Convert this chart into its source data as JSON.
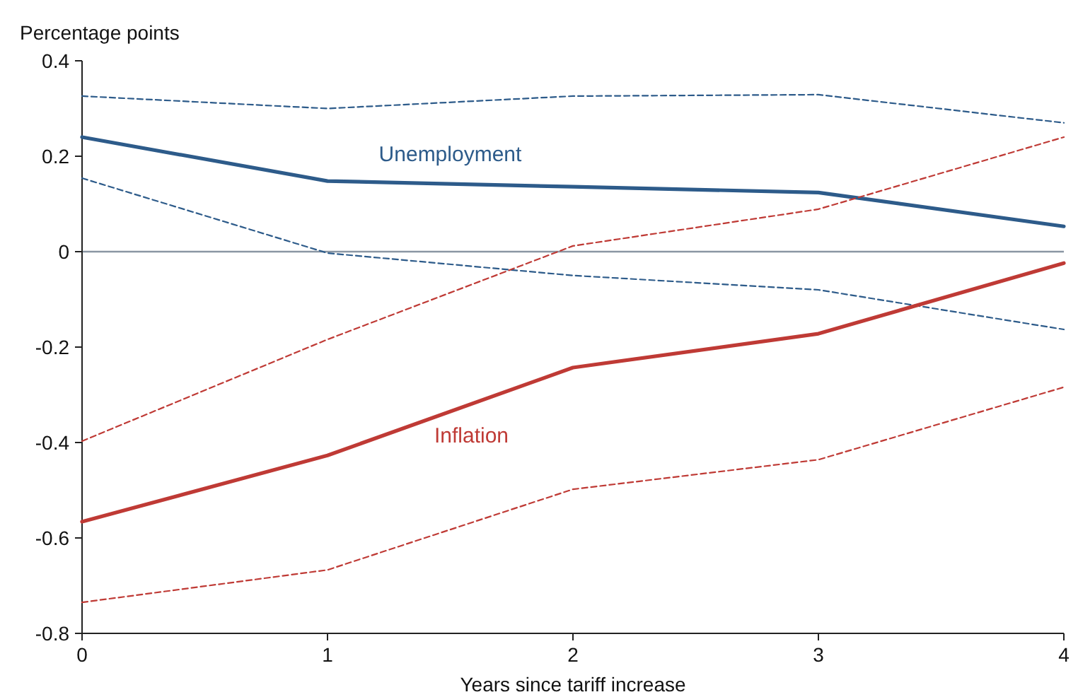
{
  "chart_data": {
    "type": "line",
    "ylabel": "Percentage points",
    "xlabel": "Years since tariff increase",
    "x": [
      0,
      1,
      2,
      3,
      4
    ],
    "xlim": [
      0,
      4
    ],
    "xticks": [
      0,
      1,
      2,
      3,
      4
    ],
    "ylim": [
      -0.8,
      0.4
    ],
    "yticks": [
      -0.8,
      -0.6,
      -0.4,
      -0.2,
      0,
      0.2,
      0.4
    ],
    "grid": false,
    "legend": false,
    "marker": "none",
    "series": [
      {
        "name": "Unemployment",
        "color": "#2d5b8a",
        "values": [
          0.24,
          0.148,
          0.136,
          0.124,
          0.053
        ]
      },
      {
        "color": "#2d5b8a",
        "line_style": "dashed",
        "values": [
          0.326,
          0.3,
          0.326,
          0.329,
          0.27
        ]
      },
      {
        "color": "#2d5b8a",
        "line_style": "dashed",
        "values": [
          0.154,
          -0.003,
          -0.05,
          -0.08,
          -0.163
        ]
      },
      {
        "name": "Inflation",
        "color": "#bf3a35",
        "values": [
          -0.566,
          -0.427,
          -0.243,
          -0.172,
          -0.024
        ]
      },
      {
        "color": "#bf3a35",
        "line_style": "dashed",
        "values": [
          -0.397,
          -0.184,
          0.012,
          0.089,
          0.24
        ]
      },
      {
        "color": "#bf3a35",
        "line_style": "dashed",
        "values": [
          -0.735,
          -0.667,
          -0.498,
          -0.436,
          -0.284
        ]
      }
    ],
    "ref_lines": [
      {
        "axis": "y",
        "value": 0,
        "color": "#8a96a3"
      }
    ]
  }
}
